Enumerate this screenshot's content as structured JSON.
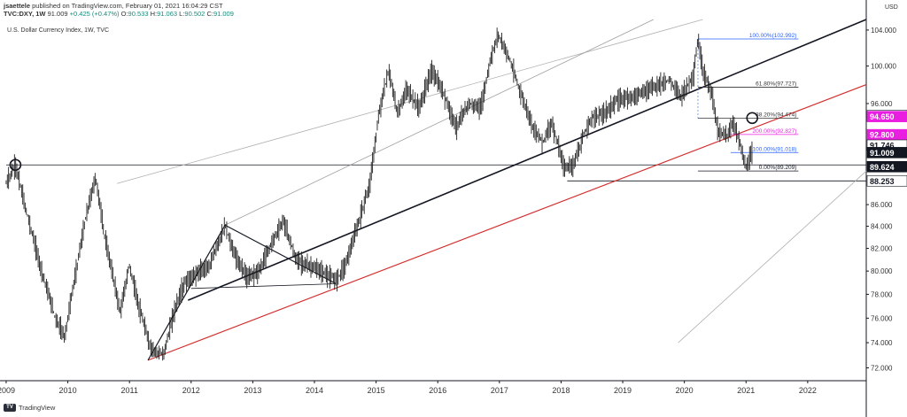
{
  "header": {
    "author": "jsaettele",
    "published_text": "published on TradingView.com, February 01, 2021 16:04:29 CST",
    "symbol": "TVC:DXY, 1W",
    "last": "91.009",
    "change": "+0.425 (+0.47%)",
    "o_label": "O:",
    "o_value": "90.533",
    "h_label": "H:",
    "h_value": "91.063",
    "l_label": "L:",
    "l_value": "90.502",
    "c_label": "C:",
    "c_value": "91.009"
  },
  "chart_title": "U.S. Dollar Currency Index, 1W, TVC",
  "currency": "USD",
  "logo_text": "TradingView",
  "chart_data": {
    "type": "line",
    "x_range": [
      2008.9,
      2022.95
    ],
    "ylim": [
      71.0,
      105.2
    ],
    "scale": "log",
    "grid": false,
    "x_ticks": [
      "2009",
      "2010",
      "2011",
      "2012",
      "2013",
      "2014",
      "2015",
      "2016",
      "2017",
      "2018",
      "2019",
      "2020",
      "2021",
      "2022"
    ],
    "x_tick_values": [
      2009,
      2010,
      2011,
      2012,
      2013,
      2014,
      2015,
      2016,
      2017,
      2018,
      2019,
      2020,
      2021,
      2022
    ],
    "y_ticks": [
      "72.000",
      "74.000",
      "76.000",
      "78.000",
      "80.000",
      "82.000",
      "84.000",
      "86.000",
      "96.000",
      "100.000",
      "104.000"
    ],
    "y_tick_values": [
      72,
      74,
      76,
      78,
      80,
      82,
      84,
      86,
      96,
      100,
      104
    ],
    "price_labels": [
      {
        "text": "94.742",
        "value": 94.742,
        "color": "#131722"
      },
      {
        "text": "94.650",
        "value": 94.65,
        "color": "#e91ee0"
      },
      {
        "text": "92.800",
        "value": 92.8,
        "color": "#e91ee0"
      },
      {
        "text": "91.746",
        "value": 91.746,
        "color": "#131722"
      },
      {
        "text": "91.009",
        "value": 91.009,
        "color": "#ffffff"
      },
      {
        "text": "89.624",
        "value": 89.624,
        "color": "#ffffff"
      },
      {
        "text": "88.253",
        "value": 88.253,
        "color": "#131722"
      }
    ],
    "fib_levels": [
      {
        "text": "100.00%(102.992)",
        "value": 102.992,
        "color": "#2962ff",
        "x0": 2020.22,
        "x1": 2021.85
      },
      {
        "text": "61.80%(97.727)",
        "value": 97.727,
        "color": "#333333",
        "x0": 2020.22,
        "x1": 2021.85
      },
      {
        "text": "38.20%(94.474)",
        "value": 94.474,
        "color": "#333333",
        "x0": 2020.22,
        "x1": 2021.85
      },
      {
        "text": "200.00%(92.827)",
        "value": 92.827,
        "color": "#e91ee0",
        "x0": 2020.75,
        "x1": 2021.85
      },
      {
        "text": "100.00%(91.018)",
        "value": 91.018,
        "color": "#2962ff",
        "x0": 2020.75,
        "x1": 2021.85
      },
      {
        "text": "0.00%(89.209)",
        "value": 89.209,
        "color": "#131722",
        "x0": 2020.22,
        "x1": 2021.85
      }
    ],
    "trend_lines": [
      {
        "x": [
          2009.0,
          2022.95
        ],
        "y": [
          89.8,
          89.8
        ],
        "color": "#131722",
        "width": 0.8
      },
      {
        "x": [
          2018.1,
          2022.95
        ],
        "y": [
          88.25,
          88.25
        ],
        "color": "#131722",
        "width": 0.8
      },
      {
        "x": [
          2011.95,
          2022.95
        ],
        "y": [
          77.5,
          105.2
        ],
        "color": "#131722",
        "width": 1.6
      },
      {
        "x": [
          2011.3,
          2022.95
        ],
        "y": [
          72.6,
          98.0
        ],
        "color": "#d32f2f",
        "width": 1.2
      },
      {
        "x": [
          2010.8,
          2020.3
        ],
        "y": [
          88.0,
          105.2
        ],
        "color": "#b0b0b0",
        "width": 0.8
      },
      {
        "x": [
          2012.55,
          2019.5
        ],
        "y": [
          84.1,
          105.2
        ],
        "color": "#9e9e9e",
        "width": 0.8
      },
      {
        "x": [
          2019.9,
          2022.95
        ],
        "y": [
          74.0,
          89.2
        ],
        "color": "#b0b0b0",
        "width": 0.8
      },
      {
        "x": [
          2011.3,
          2012.55
        ],
        "y": [
          72.6,
          84.1
        ],
        "color": "#131722",
        "width": 1.2
      },
      {
        "x": [
          2012.55,
          2014.35
        ],
        "y": [
          84.1,
          78.9
        ],
        "color": "#131722",
        "width": 1.2
      },
      {
        "x": [
          2012.0,
          2014.35
        ],
        "y": [
          78.5,
          78.9
        ],
        "color": "#131722",
        "width": 0.8
      }
    ],
    "circles": [
      {
        "x": 2009.15,
        "y": 89.8
      },
      {
        "x": 2021.1,
        "y": 94.5
      }
    ],
    "price_path": [
      [
        2009.0,
        88.0
      ],
      [
        2009.15,
        89.8
      ],
      [
        2009.3,
        86.0
      ],
      [
        2009.55,
        80.5
      ],
      [
        2009.8,
        76.0
      ],
      [
        2009.95,
        74.5
      ],
      [
        2010.1,
        79.0
      ],
      [
        2010.3,
        85.0
      ],
      [
        2010.45,
        88.6
      ],
      [
        2010.6,
        83.0
      ],
      [
        2010.85,
        76.5
      ],
      [
        2011.0,
        80.5
      ],
      [
        2011.15,
        77.0
      ],
      [
        2011.35,
        73.5
      ],
      [
        2011.55,
        73.0
      ],
      [
        2011.75,
        77.0
      ],
      [
        2011.9,
        79.0
      ],
      [
        2012.1,
        79.8
      ],
      [
        2012.3,
        80.5
      ],
      [
        2012.55,
        84.0
      ],
      [
        2012.7,
        81.5
      ],
      [
        2012.9,
        79.5
      ],
      [
        2013.1,
        80.0
      ],
      [
        2013.35,
        83.0
      ],
      [
        2013.5,
        84.5
      ],
      [
        2013.7,
        81.0
      ],
      [
        2013.9,
        80.5
      ],
      [
        2014.1,
        80.0
      ],
      [
        2014.35,
        79.2
      ],
      [
        2014.5,
        80.5
      ],
      [
        2014.7,
        84.0
      ],
      [
        2014.9,
        88.0
      ],
      [
        2015.05,
        95.0
      ],
      [
        2015.2,
        99.5
      ],
      [
        2015.35,
        95.0
      ],
      [
        2015.5,
        97.5
      ],
      [
        2015.7,
        95.5
      ],
      [
        2015.9,
        99.5
      ],
      [
        2016.1,
        97.0
      ],
      [
        2016.3,
        93.5
      ],
      [
        2016.5,
        96.0
      ],
      [
        2016.7,
        95.5
      ],
      [
        2016.85,
        100.5
      ],
      [
        2016.98,
        103.5
      ],
      [
        2017.15,
        101.0
      ],
      [
        2017.35,
        97.0
      ],
      [
        2017.55,
        93.5
      ],
      [
        2017.7,
        92.0
      ],
      [
        2017.85,
        94.0
      ],
      [
        2018.05,
        89.5
      ],
      [
        2018.2,
        89.8
      ],
      [
        2018.35,
        92.5
      ],
      [
        2018.5,
        94.5
      ],
      [
        2018.7,
        95.0
      ],
      [
        2018.95,
        96.5
      ],
      [
        2019.2,
        96.8
      ],
      [
        2019.4,
        97.5
      ],
      [
        2019.6,
        98.0
      ],
      [
        2019.75,
        98.5
      ],
      [
        2019.95,
        96.8
      ],
      [
        2020.15,
        99.0
      ],
      [
        2020.22,
        103.0
      ],
      [
        2020.3,
        99.5
      ],
      [
        2020.45,
        97.0
      ],
      [
        2020.55,
        93.0
      ],
      [
        2020.7,
        92.8
      ],
      [
        2020.8,
        94.0
      ],
      [
        2020.9,
        92.0
      ],
      [
        2021.0,
        89.5
      ],
      [
        2021.05,
        90.2
      ],
      [
        2021.1,
        91.0
      ]
    ]
  }
}
